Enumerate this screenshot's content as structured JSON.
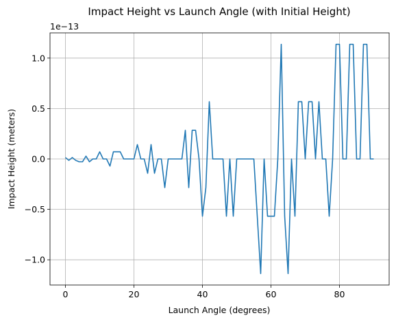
{
  "chart_data": {
    "type": "line",
    "title": "Impact Height vs Launch Angle (with Initial Height)",
    "x_label": "Launch Angle (degrees)",
    "y_label": "Impact Height (meters)",
    "y_offset_text": "1e−13",
    "x": [
      0,
      1,
      2,
      3,
      4,
      5,
      6,
      7,
      8,
      9,
      10,
      11,
      12,
      13,
      14,
      15,
      16,
      17,
      18,
      19,
      20,
      21,
      22,
      23,
      24,
      25,
      26,
      27,
      28,
      29,
      30,
      31,
      32,
      33,
      34,
      35,
      36,
      37,
      38,
      39,
      40,
      41,
      42,
      43,
      44,
      45,
      46,
      47,
      48,
      49,
      50,
      51,
      52,
      53,
      54,
      55,
      56,
      57,
      58,
      59,
      60,
      61,
      62,
      63,
      64,
      65,
      66,
      67,
      68,
      69,
      70,
      71,
      72,
      73,
      74,
      75,
      76,
      77,
      78,
      79,
      80,
      81,
      82,
      83,
      84,
      85,
      86,
      87,
      88,
      89,
      90
    ],
    "series": [
      {
        "name": "Impact Height",
        "color": "#1f77b4",
        "values": [
          0.014,
          -0.014,
          0.014,
          -0.014,
          -0.028,
          -0.028,
          0.028,
          -0.028,
          0,
          0,
          0.071,
          0,
          0,
          -0.071,
          0.071,
          0.071,
          0.071,
          0,
          0,
          0,
          0,
          0.142,
          0,
          0,
          -0.142,
          0.142,
          -0.142,
          0,
          0,
          -0.284,
          0,
          0,
          0,
          0,
          0,
          0.284,
          -0.284,
          0.284,
          0.284,
          0,
          -0.568,
          -0.284,
          0.568,
          0,
          0,
          0,
          0,
          -0.568,
          0,
          -0.568,
          0,
          0,
          0,
          0,
          0,
          0,
          -0.568,
          -1.137,
          0,
          -0.568,
          -0.568,
          -0.568,
          0,
          1.137,
          -0.568,
          -1.137,
          0,
          -0.568,
          0.568,
          0.568,
          0,
          0.568,
          0.568,
          0,
          0.568,
          0,
          0,
          -0.568,
          0,
          1.137,
          1.137,
          0,
          0,
          1.137,
          1.137,
          0,
          0,
          1.137,
          1.137,
          0,
          0
        ]
      }
    ],
    "xlim": [
      -4.5,
      94.5
    ],
    "ylim": [
      -1.25,
      1.25
    ],
    "xticks": [
      0,
      20,
      40,
      60,
      80
    ],
    "yticks": [
      {
        "value": -1,
        "label": "−1.0"
      },
      {
        "value": -0.5,
        "label": "−0.5"
      },
      {
        "value": 0,
        "label": "0.0"
      },
      0.5,
      {
        "value": 1,
        "label": "1.0"
      }
    ],
    "grid": true
  }
}
